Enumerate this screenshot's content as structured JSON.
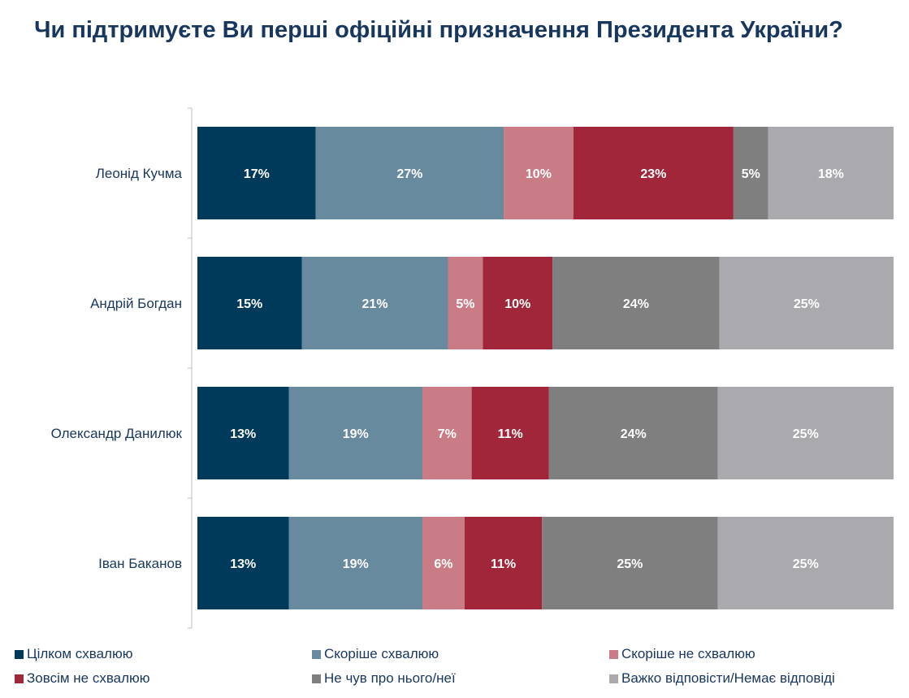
{
  "chart_data": {
    "type": "bar",
    "orientation": "horizontal",
    "stacked": true,
    "title": "Чи підтримуєте Ви перші офіційні призначення Президента України?",
    "categories": [
      "Леонід Кучма",
      "Андрій Богдан",
      "Олександр Данилюк",
      "Іван Баканов"
    ],
    "series": [
      {
        "name": "Цілком схвалюю",
        "color": "#003a5a",
        "values": [
          17,
          15,
          13,
          13
        ]
      },
      {
        "name": "Скоріше схвалюю",
        "color": "#688a9e",
        "values": [
          27,
          21,
          19,
          19
        ]
      },
      {
        "name": "Скоріше не схвалюю",
        "color": "#c97c86",
        "values": [
          10,
          5,
          7,
          6
        ]
      },
      {
        "name": "Зовсім не схвалюю",
        "color": "#a22639",
        "values": [
          23,
          10,
          11,
          11
        ]
      },
      {
        "name": "Не чув про нього/неї",
        "color": "#7f7f7f",
        "values": [
          5,
          24,
          24,
          25
        ]
      },
      {
        "name": "Важко відповісти/Немає відповіді",
        "color": "#aaa9ad",
        "values": [
          18,
          25,
          25,
          25
        ]
      }
    ],
    "unit": "%",
    "grid": false,
    "legend_position": "bottom"
  }
}
